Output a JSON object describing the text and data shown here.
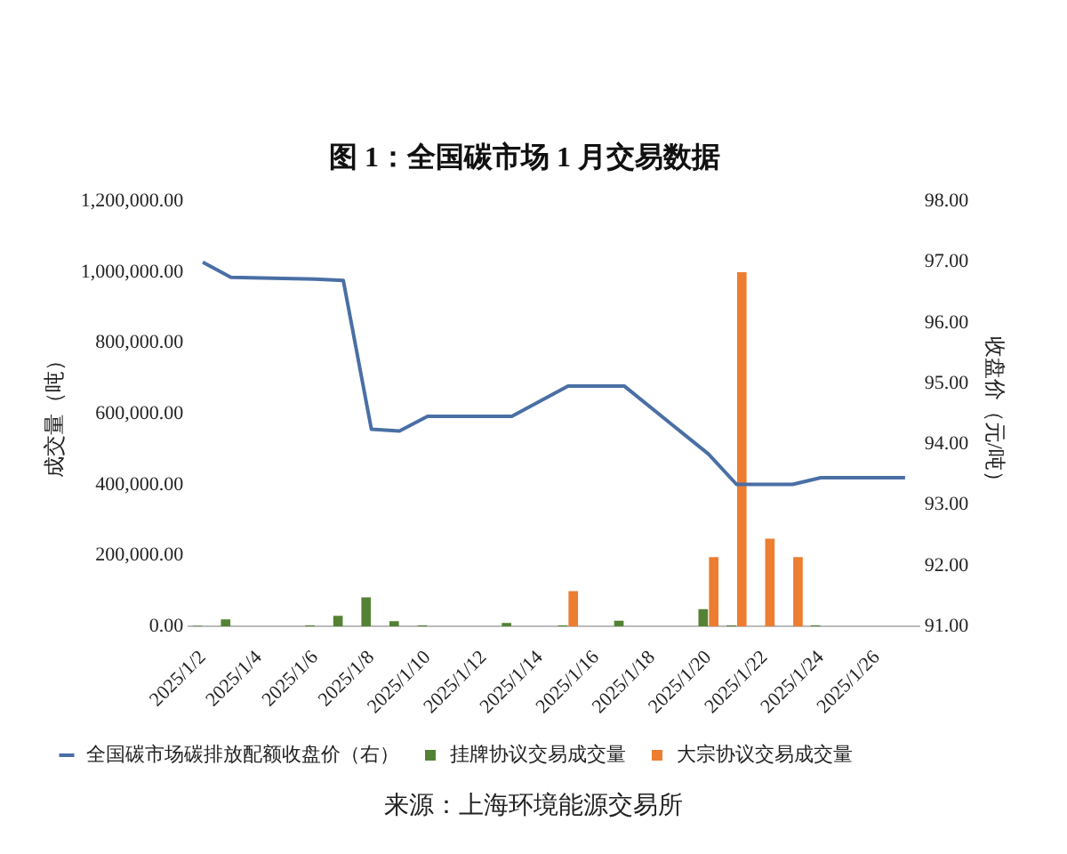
{
  "chart_data": {
    "type": "bar",
    "title": "图 1：全国碳市场 1 月交易数据",
    "ylabel": "成交量（吨）",
    "y2label": "收盘价（元/吨）",
    "categories": [
      "2025/1/2",
      null,
      "2025/1/4",
      null,
      "2025/1/6",
      null,
      "2025/1/8",
      null,
      "2025/1/10",
      null,
      "2025/1/12",
      null,
      "2025/1/14",
      null,
      "2025/1/16",
      null,
      "2025/1/18",
      null,
      "2025/1/20",
      null,
      "2025/1/22",
      null,
      "2025/1/24",
      null,
      "2025/1/26",
      null
    ],
    "series": [
      {
        "name": "挂牌协议交易成交量",
        "color": "#548235",
        "values": [
          2000,
          20000,
          null,
          null,
          3000,
          30000,
          82000,
          15000,
          3000,
          null,
          null,
          10000,
          0,
          3000,
          0,
          16000,
          null,
          null,
          49000,
          3000,
          0,
          0,
          3000,
          null,
          null,
          0
        ]
      },
      {
        "name": "大宗协议交易成交量",
        "color": "#ed7d31",
        "values": [
          0,
          0,
          null,
          null,
          0,
          0,
          0,
          0,
          0,
          null,
          null,
          0,
          0,
          100000,
          0,
          0,
          null,
          null,
          196000,
          1000000,
          248000,
          196000,
          0,
          null,
          null,
          0
        ]
      },
      {
        "name": "全国碳市场碳排放配额收盘价（右）",
        "type": "line",
        "axis": "y2",
        "color": "#4a6fa5",
        "values": [
          97.0,
          96.75,
          null,
          null,
          96.72,
          96.7,
          94.25,
          94.22,
          94.46,
          null,
          null,
          94.46,
          94.71,
          94.96,
          94.96,
          94.96,
          null,
          null,
          93.84,
          93.34,
          93.34,
          93.34,
          93.45,
          null,
          null,
          93.45
        ]
      }
    ],
    "ylim": [
      0,
      1200000
    ],
    "yticks": [
      {
        "value": 0,
        "label": "0.00"
      },
      {
        "value": 200000,
        "label": "200,000.00"
      },
      {
        "value": 400000,
        "label": "400,000.00"
      },
      {
        "value": 600000,
        "label": "600,000.00"
      },
      {
        "value": 800000,
        "label": "800,000.00"
      },
      {
        "value": 1000000,
        "label": "1,000,000.00"
      },
      {
        "value": 1200000,
        "label": "1,200,000.00"
      }
    ],
    "y2lim": [
      91,
      98
    ],
    "y2ticks": [
      {
        "value": 91,
        "label": "91.00"
      },
      {
        "value": 92,
        "label": "92.00"
      },
      {
        "value": 93,
        "label": "93.00"
      },
      {
        "value": 94,
        "label": "94.00"
      },
      {
        "value": 95,
        "label": "95.00"
      },
      {
        "value": 96,
        "label": "96.00"
      },
      {
        "value": 97,
        "label": "97.00"
      },
      {
        "value": 98,
        "label": "98.00"
      }
    ],
    "grid": false,
    "legend": "bottom",
    "marker": "none",
    "line_style": "solid",
    "annotations": [
      "来源：上海环境能源交易所"
    ]
  }
}
